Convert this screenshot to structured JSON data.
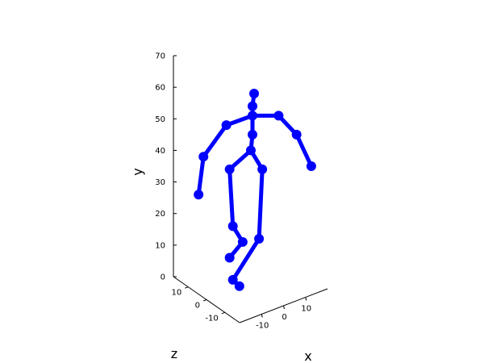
{
  "chart_data": {
    "type": "scatter",
    "title": "",
    "xlabel": "x",
    "ylabel": "y",
    "zlabel": "z",
    "xlim": [
      -20,
      20
    ],
    "ylim": [
      0,
      70
    ],
    "zlim": [
      -18,
      18
    ],
    "x_ticks": [
      -10,
      0,
      10
    ],
    "y_ticks": [
      0,
      10,
      20,
      30,
      40,
      50,
      60,
      70
    ],
    "z_ticks": [
      10,
      0,
      -10
    ],
    "series": [
      {
        "color": "#0000ff",
        "joints": [
          {
            "id": "head",
            "x": 0.5,
            "y": 58,
            "z": 0
          },
          {
            "id": "neck",
            "x": 0,
            "y": 54,
            "z": 0
          },
          {
            "id": "upper-spine",
            "x": 0,
            "y": 51,
            "z": 0
          },
          {
            "id": "spine",
            "x": 0,
            "y": 45,
            "z": 0
          },
          {
            "id": "hips",
            "x": -0.5,
            "y": 40,
            "z": 0
          },
          {
            "id": "l-shoulder",
            "x": -8,
            "y": 48,
            "z": 0
          },
          {
            "id": "l-elbow",
            "x": -15,
            "y": 38,
            "z": 0
          },
          {
            "id": "l-wrist",
            "x": -16.5,
            "y": 26,
            "z": 0
          },
          {
            "id": "r-shoulder",
            "x": 8,
            "y": 51,
            "z": 0
          },
          {
            "id": "r-elbow",
            "x": 13.5,
            "y": 45,
            "z": 0
          },
          {
            "id": "r-wrist",
            "x": 18,
            "y": 35,
            "z": 0
          },
          {
            "id": "l-hip",
            "x": -7,
            "y": 34,
            "z": 0
          },
          {
            "id": "l-knee",
            "x": -6,
            "y": 16,
            "z": 0
          },
          {
            "id": "l-ankle",
            "x": -3,
            "y": 11,
            "z": 0
          },
          {
            "id": "l-toe",
            "x": -7,
            "y": 6,
            "z": 0
          },
          {
            "id": "r-hip",
            "x": 3,
            "y": 34,
            "z": 0
          },
          {
            "id": "r-knee",
            "x": 2,
            "y": 12,
            "z": 0
          },
          {
            "id": "r-ankle",
            "x": -6,
            "y": -1,
            "z": 0
          },
          {
            "id": "r-toe",
            "x": -4,
            "y": -3,
            "z": 0
          }
        ],
        "bones": [
          [
            "head",
            "neck"
          ],
          [
            "neck",
            "upper-spine"
          ],
          [
            "upper-spine",
            "spine"
          ],
          [
            "spine",
            "hips"
          ],
          [
            "upper-spine",
            "l-shoulder"
          ],
          [
            "l-shoulder",
            "l-elbow"
          ],
          [
            "l-elbow",
            "l-wrist"
          ],
          [
            "upper-spine",
            "r-shoulder"
          ],
          [
            "r-shoulder",
            "r-elbow"
          ],
          [
            "r-elbow",
            "r-wrist"
          ],
          [
            "hips",
            "l-hip"
          ],
          [
            "l-hip",
            "l-knee"
          ],
          [
            "l-knee",
            "l-ankle"
          ],
          [
            "l-ankle",
            "l-toe"
          ],
          [
            "hips",
            "r-hip"
          ],
          [
            "r-hip",
            "r-knee"
          ],
          [
            "r-knee",
            "r-ankle"
          ],
          [
            "r-ankle",
            "r-toe"
          ]
        ]
      }
    ]
  }
}
